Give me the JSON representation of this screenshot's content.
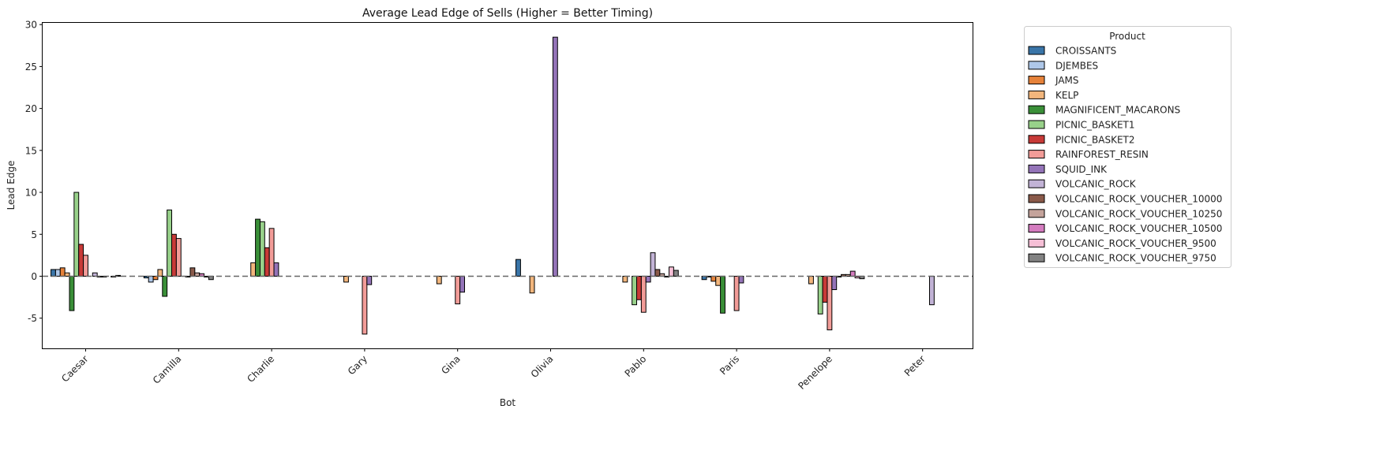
{
  "chart_data": {
    "type": "bar",
    "title": "Average Lead Edge of Sells (Higher = Better Timing)",
    "xlabel": "Bot",
    "ylabel": "Lead Edge",
    "ylim": [
      -8.6,
      30.3
    ],
    "yticks": [
      -5,
      0,
      5,
      10,
      15,
      20,
      25,
      30
    ],
    "legend_title": "Product",
    "legend_position": "outside-right",
    "zero_line": "dashed",
    "grid": false,
    "categories": [
      "Caesar",
      "Camilla",
      "Charlie",
      "Gary",
      "Gina",
      "Olivia",
      "Pablo",
      "Paris",
      "Penelope",
      "Peter"
    ],
    "series": [
      {
        "name": "CROISSANTS",
        "color": "#3a75a8",
        "values": [
          0.8,
          -0.2,
          null,
          null,
          null,
          2.0,
          null,
          -0.4,
          null,
          null
        ]
      },
      {
        "name": "DJEMBES",
        "color": "#aec7e8",
        "values": [
          0.8,
          -0.7,
          null,
          null,
          null,
          null,
          null,
          -0.1,
          null,
          null
        ]
      },
      {
        "name": "JAMS",
        "color": "#e6823a",
        "values": [
          1.0,
          -0.4,
          null,
          null,
          null,
          null,
          null,
          -0.6,
          null,
          null
        ]
      },
      {
        "name": "KELP",
        "color": "#f2b67d",
        "values": [
          0.4,
          0.8,
          1.6,
          -0.7,
          -0.9,
          -2.0,
          -0.7,
          -1.1,
          -0.9,
          null
        ]
      },
      {
        "name": "MAGNIFICENT_MACARONS",
        "color": "#3a8f38",
        "values": [
          -4.1,
          -2.4,
          6.8,
          null,
          null,
          null,
          null,
          -4.4,
          null,
          null
        ]
      },
      {
        "name": "PICNIC_BASKET1",
        "color": "#98d18a",
        "values": [
          10.0,
          7.9,
          6.5,
          null,
          null,
          null,
          -3.4,
          null,
          -4.5,
          null
        ]
      },
      {
        "name": "PICNIC_BASKET2",
        "color": "#c73a37",
        "values": [
          3.8,
          5.0,
          3.4,
          null,
          null,
          null,
          -2.8,
          null,
          -3.1,
          null
        ]
      },
      {
        "name": "RAINFOREST_RESIN",
        "color": "#f29c98",
        "values": [
          2.5,
          4.5,
          5.7,
          -6.9,
          -3.3,
          null,
          -4.3,
          -4.1,
          -6.4,
          null
        ]
      },
      {
        "name": "SQUID_INK",
        "color": "#9474b8",
        "values": [
          null,
          null,
          1.6,
          -1.0,
          -1.9,
          28.5,
          -0.7,
          -0.8,
          -1.6,
          null
        ]
      },
      {
        "name": "VOLCANIC_ROCK",
        "color": "#c2b3d6",
        "values": [
          0.4,
          -0.1,
          null,
          null,
          null,
          null,
          2.8,
          null,
          -0.1,
          -3.4
        ]
      },
      {
        "name": "VOLCANIC_ROCK_VOUCHER_10000",
        "color": "#8a5a4a",
        "values": [
          -0.1,
          1.0,
          null,
          null,
          null,
          null,
          0.8,
          null,
          0.2,
          null
        ]
      },
      {
        "name": "VOLCANIC_ROCK_VOUCHER_10250",
        "color": "#c4a39b",
        "values": [
          -0.1,
          0.4,
          null,
          null,
          null,
          null,
          0.3,
          null,
          0.2,
          null
        ]
      },
      {
        "name": "VOLCANIC_ROCK_VOUCHER_10500",
        "color": "#d47cbf",
        "values": [
          null,
          0.3,
          null,
          null,
          null,
          null,
          -0.1,
          null,
          0.6,
          null
        ]
      },
      {
        "name": "VOLCANIC_ROCK_VOUCHER_9500",
        "color": "#f6bfd6",
        "values": [
          -0.1,
          -0.1,
          null,
          null,
          null,
          null,
          1.1,
          null,
          -0.2,
          null
        ]
      },
      {
        "name": "VOLCANIC_ROCK_VOUCHER_9750",
        "color": "#828282",
        "values": [
          0.1,
          -0.4,
          null,
          null,
          null,
          null,
          0.7,
          null,
          -0.3,
          null
        ]
      }
    ]
  }
}
